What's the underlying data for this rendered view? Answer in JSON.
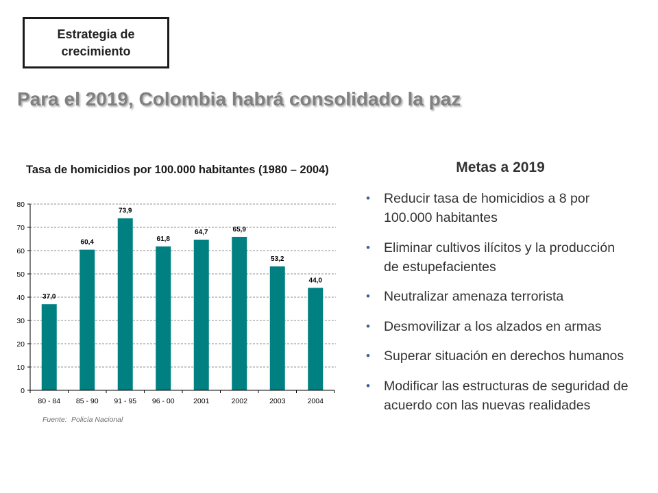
{
  "slide": {
    "section_box": "Estrategia de crecimiento",
    "title": "Para el 2019, Colombia habrá consolidado la paz",
    "goals": {
      "heading": "Metas a 2019",
      "bullet_icon": "bullet-dot-icon",
      "items": [
        {
          "lines": [
            "Reducir tasa de homicidios a 8 por",
            "100.000 habitantes"
          ]
        },
        {
          "lines": [
            "Eliminar cultivos ilícitos y la producción",
            "de estupefacientes"
          ]
        },
        {
          "lines": [
            "Neutralizar amenaza terrorista"
          ]
        },
        {
          "lines": [
            "Desmovilizar a los alzados en armas"
          ]
        },
        {
          "lines": [
            "Superar situación en derechos humanos"
          ]
        },
        {
          "lines": [
            "Modificar las estructuras de seguridad de",
            "acuerdo con las nuevas realidades"
          ]
        }
      ]
    }
  },
  "colors": {
    "title": "#808080",
    "text": "#333333",
    "bullet": "#3f5f9f",
    "border": "#1a1a1a"
  },
  "chart_data": {
    "type": "bar",
    "title": "Tasa de homicidios por 100.000 habitantes (1980 – 2004)",
    "categories": [
      "80 - 84",
      "85 - 90",
      "91 - 95",
      "96 - 00",
      "2001",
      "2002",
      "2003",
      "2004"
    ],
    "values": [
      37.0,
      60.4,
      73.9,
      61.8,
      64.7,
      65.9,
      53.2,
      44.0
    ],
    "data_labels": [
      "37,0",
      "60,4",
      "73,9",
      "61,8",
      "64,7",
      "65,9",
      "53,2",
      "44,0"
    ],
    "ylim": [
      0,
      80
    ],
    "yticks": [
      0,
      10,
      20,
      30,
      40,
      50,
      60,
      70,
      80
    ],
    "grid": true,
    "bar_color": "#008080",
    "source": {
      "label": "Fuente:",
      "text": "Policía Nacional"
    }
  }
}
